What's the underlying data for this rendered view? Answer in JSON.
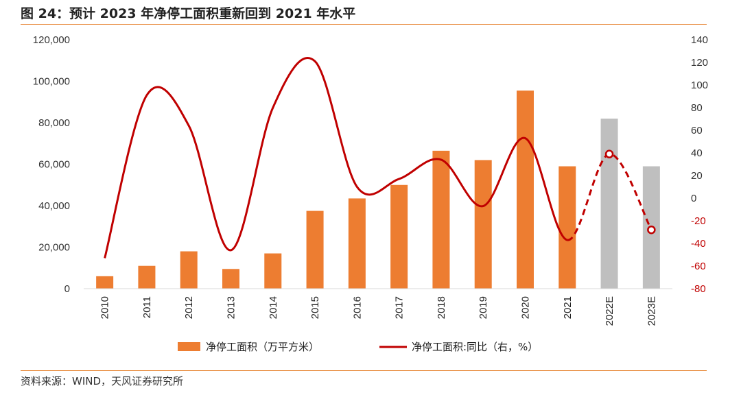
{
  "figure_title": "图 24：预计 2023 年净停工面积重新回到 2021 年水平",
  "source": "资料来源：WIND，天风证券研究所",
  "chart_data": {
    "type": "bar",
    "categories": [
      "2010",
      "2011",
      "2012",
      "2013",
      "2014",
      "2015",
      "2016",
      "2017",
      "2018",
      "2019",
      "2020",
      "2021",
      "2022E",
      "2023E"
    ],
    "series": [
      {
        "name": "净停工面积（万平方米）",
        "type": "bar",
        "axis": "left",
        "values": [
          6000,
          11000,
          18000,
          9500,
          17000,
          37500,
          43500,
          50000,
          66500,
          62000,
          95500,
          59000,
          82000,
          59000
        ],
        "colors": [
          "#ed7d31",
          "#ed7d31",
          "#ed7d31",
          "#ed7d31",
          "#ed7d31",
          "#ed7d31",
          "#ed7d31",
          "#ed7d31",
          "#ed7d31",
          "#ed7d31",
          "#ed7d31",
          "#ed7d31",
          "#bfbfbf",
          "#bfbfbf"
        ]
      },
      {
        "name": "净停工面积:同比（右，%）",
        "type": "line",
        "axis": "right",
        "values": [
          -53,
          91,
          64,
          -46,
          80,
          121,
          10,
          17,
          34,
          -7,
          53,
          -37,
          39,
          -28
        ],
        "estimate_from_index": 11,
        "color": "#c00000"
      }
    ],
    "y_left": {
      "min": 0,
      "max": 120000,
      "ticks": [
        "0",
        "20,000",
        "40,000",
        "60,000",
        "80,000",
        "100,000",
        "120,000"
      ]
    },
    "y_right": {
      "min": -80,
      "max": 140,
      "ticks": [
        "-80",
        "-60",
        "-40",
        "-20",
        "0",
        "20",
        "40",
        "60",
        "80",
        "100",
        "120",
        "140"
      ],
      "color": "#c00000"
    },
    "legend_position": "bottom",
    "grid": false
  }
}
